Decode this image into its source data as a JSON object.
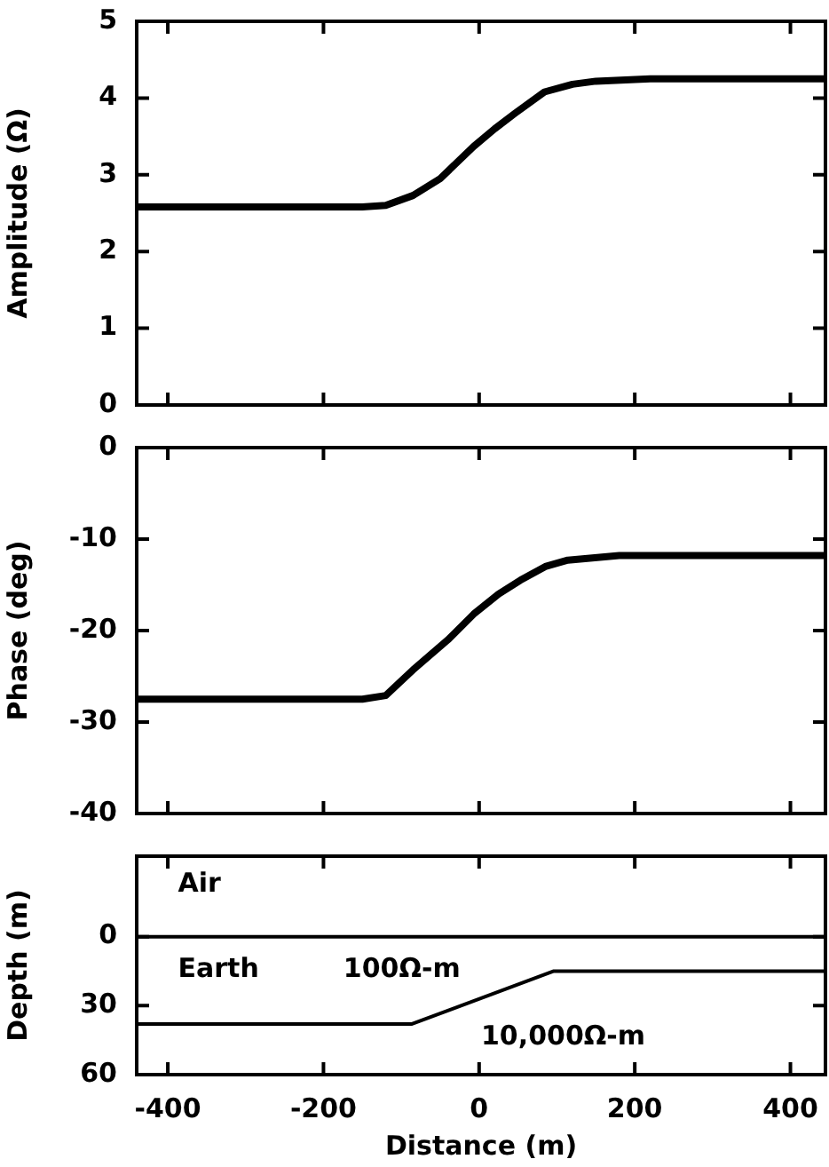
{
  "chart_data": [
    {
      "type": "line",
      "ylabel": "Amplitude (Ω)",
      "xlim": [
        -440,
        445
      ],
      "xticks": [
        -400,
        -200,
        0,
        200,
        400
      ],
      "ylim": [
        0,
        5
      ],
      "yticks": [
        0,
        1,
        2,
        3,
        4,
        5
      ],
      "tick_labels": "y",
      "series": [
        {
          "color": "#000000",
          "x": [
            -440,
            -300,
            -150,
            -120,
            -85,
            -50,
            -7,
            20,
            46,
            84,
            120,
            150,
            220,
            445
          ],
          "values": [
            2.58,
            2.58,
            2.58,
            2.6,
            2.73,
            2.95,
            3.37,
            3.6,
            3.8,
            4.08,
            4.18,
            4.22,
            4.25,
            4.25
          ]
        }
      ]
    },
    {
      "type": "line",
      "ylabel": "Phase (deg)",
      "xlim": [
        -440,
        445
      ],
      "xticks": [
        -400,
        -200,
        0,
        200,
        400
      ],
      "ylim": [
        -40,
        0
      ],
      "yticks": [
        -40,
        -30,
        -20,
        -10,
        0
      ],
      "tick_labels": "y",
      "series": [
        {
          "color": "#000000",
          "x": [
            -440,
            -150,
            -120,
            -85,
            -40,
            -7,
            25,
            53,
            85,
            114,
            180,
            445
          ],
          "values": [
            -27.5,
            -27.5,
            -27.1,
            -24.3,
            -21,
            -18.2,
            -16,
            -14.5,
            -13,
            -12.3,
            -11.8,
            -11.8
          ]
        }
      ]
    },
    {
      "type": "line",
      "ylabel": "Depth (m)",
      "xlabel": "Distance (m)",
      "xlim": [
        -440,
        445
      ],
      "xticks": [
        -400,
        -200,
        0,
        200,
        400
      ],
      "ylim": [
        60,
        -35
      ],
      "yticks": [
        0,
        30,
        60
      ],
      "series": [
        {
          "color": "#000000",
          "x": [
            -440,
            445
          ],
          "values": [
            0,
            0
          ]
        },
        {
          "color": "#000000",
          "x": [
            -440,
            -87,
            96,
            445
          ],
          "values": [
            38,
            38,
            15,
            15
          ]
        }
      ],
      "annotations": [
        "Air",
        "Earth",
        "100Ω-m",
        "10,000Ω-m"
      ]
    }
  ]
}
